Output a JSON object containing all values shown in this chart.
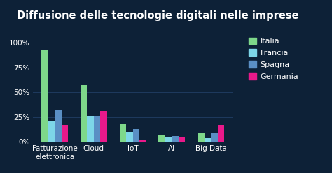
{
  "title": "Diffusione delle tecnologie digitali nelle imprese",
  "categories": [
    "Fatturazione\nelettronica",
    "Cloud",
    "IoT",
    "AI",
    "Big Data"
  ],
  "series": {
    "Italia": [
      92,
      57,
      18,
      7,
      9
    ],
    "Francia": [
      21,
      26,
      10,
      5,
      4
    ],
    "Spagna": [
      32,
      26,
      13,
      6,
      9
    ],
    "Germania": [
      17,
      31,
      2,
      5,
      17
    ]
  },
  "colors": {
    "Italia": "#7ed88a",
    "Francia": "#7dd6e8",
    "Spagna": "#5a8fc4",
    "Germania": "#e9198a"
  },
  "yticks": [
    0,
    25,
    50,
    75,
    100
  ],
  "ytick_labels": [
    "0%",
    "25%",
    "50%",
    "75%",
    "100%"
  ],
  "background_color": "#0d2137",
  "grid_color": "#1e3a5f",
  "text_color": "#ffffff",
  "title_fontsize": 10.5,
  "axis_fontsize": 7.5,
  "legend_fontsize": 8
}
